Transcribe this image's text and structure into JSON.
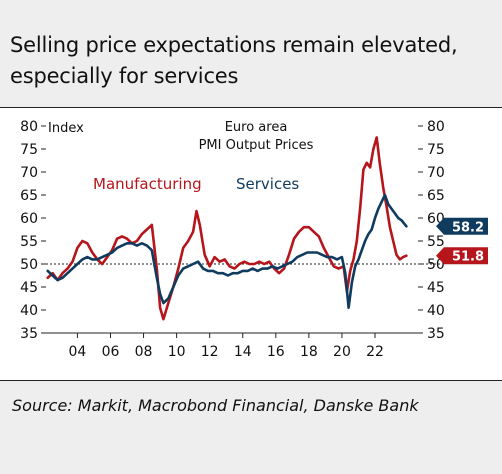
{
  "header": {
    "title": "Selling price expectations remain elevated, especially for services"
  },
  "footer": {
    "source": "Source: Markit, Macrobond Financial, Danske Bank"
  },
  "chart_data": {
    "type": "line",
    "title": "Euro area\nPMI Output Prices",
    "ylabel": "Index",
    "ylim": [
      35,
      80
    ],
    "yticks": [
      35,
      40,
      45,
      50,
      55,
      60,
      65,
      70,
      75,
      80
    ],
    "xlim": [
      2002.1,
      2024.6
    ],
    "xticks": [
      2004,
      2006,
      2008,
      2010,
      2012,
      2014,
      2016,
      2018,
      2020,
      2022
    ],
    "xticklabels": [
      "04",
      "06",
      "08",
      "10",
      "12",
      "14",
      "16",
      "18",
      "20",
      "22"
    ],
    "reference_line": 50,
    "grid": false,
    "legend": "inline",
    "colors": {
      "manufacturing": "#b5151b",
      "services": "#0f3b5f"
    },
    "series": [
      {
        "name": "Manufacturing",
        "color": "#b5151b",
        "last_value_label": "51.8",
        "x": [
          2002.2,
          2002.5,
          2002.8,
          2003.1,
          2003.4,
          2003.7,
          2004.0,
          2004.3,
          2004.6,
          2004.9,
          2005.2,
          2005.5,
          2005.8,
          2006.1,
          2006.4,
          2006.7,
          2007.0,
          2007.3,
          2007.6,
          2007.9,
          2008.2,
          2008.5,
          2008.8,
          2009.0,
          2009.2,
          2009.5,
          2009.8,
          2010.1,
          2010.4,
          2010.7,
          2011.0,
          2011.2,
          2011.4,
          2011.7,
          2012.0,
          2012.3,
          2012.6,
          2012.9,
          2013.2,
          2013.5,
          2013.8,
          2014.1,
          2014.4,
          2014.7,
          2015.0,
          2015.3,
          2015.6,
          2015.9,
          2016.2,
          2016.5,
          2016.8,
          2017.1,
          2017.4,
          2017.7,
          2018.0,
          2018.3,
          2018.6,
          2018.9,
          2019.2,
          2019.5,
          2019.8,
          2020.1,
          2020.3,
          2020.5,
          2020.7,
          2020.9,
          2021.1,
          2021.3,
          2021.5,
          2021.7,
          2021.9,
          2022.1,
          2022.3,
          2022.5,
          2022.7,
          2022.9,
          2023.1,
          2023.3,
          2023.5,
          2023.7,
          2023.9
        ],
        "y": [
          47.0,
          48.0,
          46.5,
          48.0,
          49.0,
          50.5,
          53.5,
          55.0,
          54.5,
          52.5,
          51.0,
          50.0,
          51.5,
          53.0,
          55.5,
          56.0,
          55.5,
          54.5,
          55.0,
          56.5,
          57.5,
          58.5,
          49.0,
          40.5,
          38.0,
          41.5,
          45.0,
          49.0,
          53.5,
          55.0,
          57.0,
          61.5,
          58.5,
          52.0,
          49.5,
          51.5,
          50.5,
          51.0,
          49.5,
          49.0,
          50.0,
          50.5,
          50.0,
          50.0,
          50.5,
          50.0,
          50.5,
          49.0,
          48.0,
          49.0,
          52.0,
          55.5,
          57.0,
          58.0,
          58.0,
          57.0,
          56.0,
          53.5,
          51.5,
          49.5,
          49.0,
          49.5,
          44.0,
          48.5,
          51.0,
          55.0,
          62.0,
          70.5,
          72.0,
          71.0,
          75.0,
          77.5,
          71.5,
          66.5,
          62.5,
          58.0,
          55.0,
          52.0,
          51.0,
          51.5,
          51.8
        ]
      },
      {
        "name": "Services",
        "color": "#0f3b5f",
        "last_value_label": "58.2",
        "x": [
          2002.2,
          2002.5,
          2002.8,
          2003.1,
          2003.4,
          2003.7,
          2004.0,
          2004.3,
          2004.6,
          2004.9,
          2005.2,
          2005.5,
          2005.8,
          2006.1,
          2006.4,
          2006.7,
          2007.0,
          2007.3,
          2007.6,
          2007.9,
          2008.2,
          2008.5,
          2008.8,
          2009.0,
          2009.2,
          2009.5,
          2009.8,
          2010.1,
          2010.4,
          2010.7,
          2011.0,
          2011.3,
          2011.6,
          2011.9,
          2012.2,
          2012.5,
          2012.8,
          2013.1,
          2013.4,
          2013.7,
          2014.0,
          2014.3,
          2014.6,
          2014.9,
          2015.2,
          2015.5,
          2015.8,
          2016.1,
          2016.4,
          2016.7,
          2017.0,
          2017.3,
          2017.6,
          2017.9,
          2018.2,
          2018.5,
          2018.8,
          2019.1,
          2019.4,
          2019.7,
          2020.0,
          2020.2,
          2020.4,
          2020.6,
          2020.8,
          2021.0,
          2021.2,
          2021.4,
          2021.6,
          2021.8,
          2022.0,
          2022.2,
          2022.4,
          2022.6,
          2022.8,
          2023.0,
          2023.2,
          2023.4,
          2023.6,
          2023.9
        ],
        "y": [
          48.5,
          47.5,
          46.5,
          47.0,
          48.0,
          49.0,
          50.0,
          51.0,
          51.5,
          51.0,
          51.0,
          51.5,
          52.0,
          52.5,
          53.5,
          54.0,
          54.5,
          54.5,
          54.0,
          54.5,
          54.0,
          53.0,
          47.0,
          43.5,
          41.5,
          42.5,
          45.0,
          47.5,
          49.0,
          49.5,
          50.0,
          50.5,
          49.0,
          48.5,
          48.5,
          48.0,
          48.0,
          47.5,
          48.0,
          48.0,
          48.5,
          48.5,
          49.0,
          48.5,
          49.0,
          49.0,
          49.5,
          49.0,
          49.5,
          50.0,
          50.5,
          51.5,
          52.0,
          52.5,
          52.5,
          52.5,
          52.0,
          51.5,
          51.5,
          51.0,
          51.5,
          48.0,
          40.5,
          46.0,
          49.5,
          51.0,
          53.0,
          55.0,
          56.5,
          57.5,
          60.0,
          62.0,
          63.5,
          65.0,
          63.0,
          62.0,
          61.0,
          60.0,
          59.5,
          58.2
        ]
      }
    ]
  }
}
